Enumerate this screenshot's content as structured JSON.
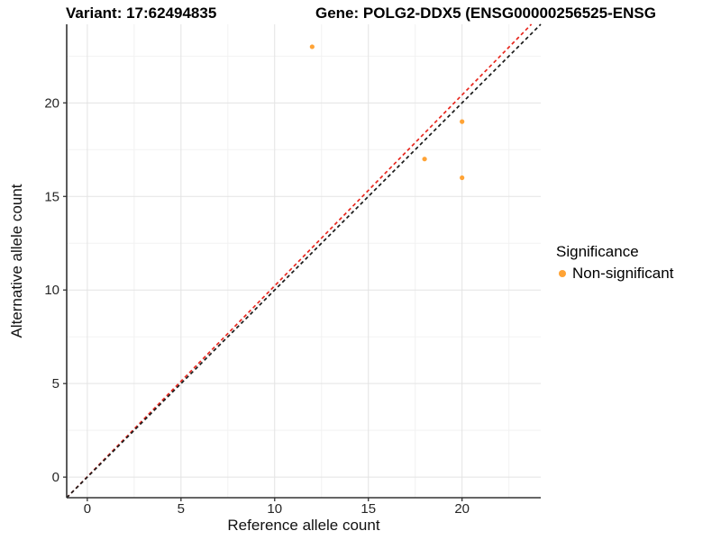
{
  "header": {
    "variant_title": "Variant: 17:62494835",
    "gene_title": "Gene: POLG2-DDX5 (ENSG00000256525-ENSG"
  },
  "chart_data": {
    "type": "scatter",
    "xlabel": "Reference allele count",
    "ylabel": "Alternative allele count",
    "xlim": [
      -1.1,
      24.2
    ],
    "ylim": [
      -1.1,
      24.2
    ],
    "x_ticks": [
      0,
      5,
      10,
      15,
      20
    ],
    "y_ticks": [
      0,
      5,
      10,
      15,
      20
    ],
    "x_minor_ticks": [
      2.5,
      7.5,
      12.5,
      17.5,
      22.5
    ],
    "y_minor_ticks": [
      2.5,
      7.5,
      12.5,
      17.5,
      22.5
    ],
    "grid": true,
    "legend_position": "right",
    "series": [
      {
        "name": "Non-significant",
        "color": "#FFA335",
        "points": [
          {
            "x": 12,
            "y": 23
          },
          {
            "x": 18,
            "y": 17
          },
          {
            "x": 20,
            "y": 19
          },
          {
            "x": 20,
            "y": 16
          }
        ]
      }
    ],
    "lines": [
      {
        "name": "fitted-ratio-line",
        "color": "#E8271E",
        "style": "dashed",
        "x1": -1.1,
        "y1": -1.1,
        "x2": 23.7,
        "y2": 24.2
      },
      {
        "name": "identity-line",
        "color": "#1A1A1A",
        "style": "dashed",
        "x1": -1.1,
        "y1": -1.1,
        "x2": 24.2,
        "y2": 24.2
      }
    ],
    "legend": {
      "title": "Significance",
      "entries": [
        {
          "label": "Non-significant",
          "color": "#FFA335"
        }
      ]
    },
    "colors": {
      "background": "#FFFFFF",
      "grid_major": "#E3E3E3",
      "grid_minor": "#F2F2F2",
      "axis": "#333333",
      "tick_label": "#262626"
    }
  }
}
